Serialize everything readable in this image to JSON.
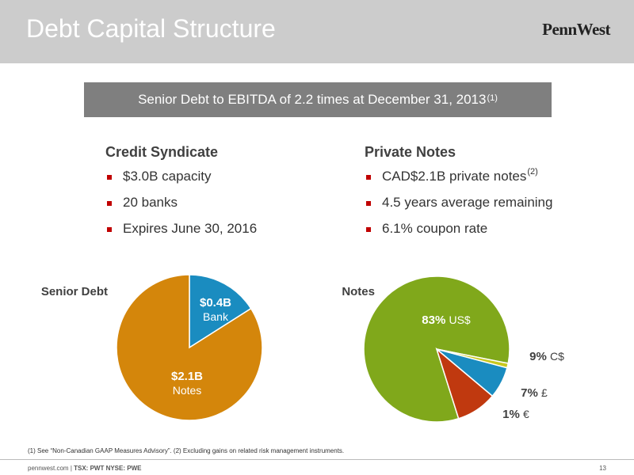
{
  "header": {
    "title": "Debt Capital Structure",
    "logo": "PennWest"
  },
  "banner": {
    "text": "Senior Debt to EBITDA of 2.2 times at December 31, 2013",
    "superscript": "(1)"
  },
  "credit": {
    "heading": "Credit Syndicate",
    "items": [
      "$3.0B capacity",
      "20 banks",
      "Expires June 30, 2016"
    ]
  },
  "private": {
    "heading": "Private Notes",
    "items": [
      "CAD$2.1B private notes",
      "4.5 years average remaining",
      "6.1% coupon rate"
    ],
    "first_sup": "(2)"
  },
  "colors": {
    "notes": "#d4860b",
    "bank": "#1a8cc0",
    "us": "#80a81b",
    "cad": "#c0390f",
    "gbp": "#1a8cc0",
    "eur": "#c8c820",
    "bullet": "#c00000"
  },
  "chart_data": [
    {
      "type": "pie",
      "label": "Senior Debt",
      "slices": [
        {
          "value_text": "$0.4B",
          "name": "Bank",
          "value": 0.4,
          "color": "#1a8cc0"
        },
        {
          "value_text": "$2.1B",
          "name": "Notes",
          "value": 2.1,
          "color": "#d4860b"
        }
      ]
    },
    {
      "type": "pie",
      "label": "Notes",
      "slices": [
        {
          "value_text": "83%",
          "name": "US$",
          "value": 83,
          "color": "#80a81b"
        },
        {
          "value_text": "9%",
          "name": "C$",
          "value": 9,
          "color": "#c0390f"
        },
        {
          "value_text": "7%",
          "name": "£",
          "value": 7,
          "color": "#1a8cc0"
        },
        {
          "value_text": "1%",
          "name": "€",
          "value": 1,
          "color": "#c8c820"
        }
      ]
    }
  ],
  "footnote": "(1) See “Non-Canadian GAAP Measures Advisory”. (2) Excluding gains on related risk management instruments.",
  "footer": {
    "site": "pennwest.com",
    "tickers": "TSX: PWT  NYSE: PWE",
    "page": "13"
  }
}
